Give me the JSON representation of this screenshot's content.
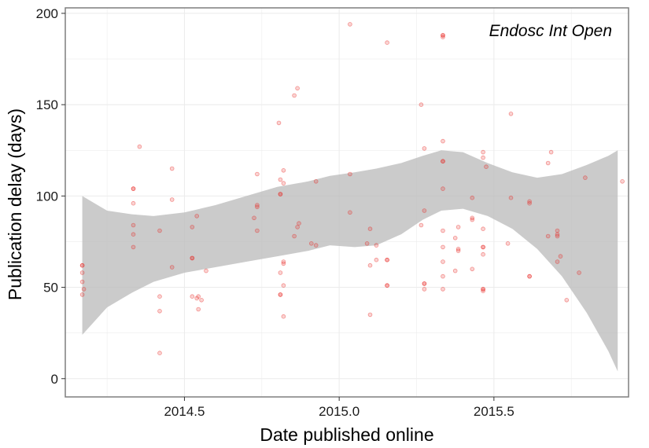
{
  "chart_data": {
    "type": "scatter",
    "annotation": "Endosc Int Open",
    "xlabel": "Date published online",
    "ylabel": "Publication delay (days)",
    "xlim": [
      2014.115,
      2015.935
    ],
    "ylim": [
      -10,
      203
    ],
    "x_ticks": [
      2014.5,
      2015.0,
      2015.5
    ],
    "x_tick_labels": [
      "2014.5",
      "2015.0",
      "2015.5"
    ],
    "y_ticks": [
      0,
      50,
      100,
      150,
      200
    ],
    "y_tick_labels": [
      "0",
      "50",
      "100",
      "150",
      "200"
    ],
    "grid": true,
    "colors": {
      "points": "#e8211d",
      "band": "#bdbdbd",
      "panel_border": "#7f7f7f",
      "grid": "#ececec"
    },
    "points": [
      [
        2014.17,
        62
      ],
      [
        2014.17,
        62
      ],
      [
        2014.17,
        58
      ],
      [
        2014.17,
        53
      ],
      [
        2014.17,
        46
      ],
      [
        2014.175,
        49
      ],
      [
        2014.335,
        104
      ],
      [
        2014.335,
        104
      ],
      [
        2014.335,
        96
      ],
      [
        2014.335,
        84
      ],
      [
        2014.335,
        79
      ],
      [
        2014.335,
        72
      ],
      [
        2014.355,
        127
      ],
      [
        2014.42,
        81
      ],
      [
        2014.42,
        45
      ],
      [
        2014.42,
        37
      ],
      [
        2014.42,
        14
      ],
      [
        2014.46,
        115
      ],
      [
        2014.46,
        98
      ],
      [
        2014.46,
        61
      ],
      [
        2014.525,
        83
      ],
      [
        2014.525,
        66
      ],
      [
        2014.525,
        66
      ],
      [
        2014.525,
        45
      ],
      [
        2014.54,
        89
      ],
      [
        2014.54,
        44
      ],
      [
        2014.545,
        45
      ],
      [
        2014.545,
        38
      ],
      [
        2014.555,
        43
      ],
      [
        2014.57,
        59
      ],
      [
        2014.725,
        88
      ],
      [
        2014.735,
        112
      ],
      [
        2014.735,
        95
      ],
      [
        2014.735,
        94
      ],
      [
        2014.735,
        81
      ],
      [
        2014.805,
        140
      ],
      [
        2014.81,
        109
      ],
      [
        2014.81,
        101
      ],
      [
        2014.81,
        101
      ],
      [
        2014.81,
        58
      ],
      [
        2014.81,
        46
      ],
      [
        2014.81,
        46
      ],
      [
        2014.82,
        114
      ],
      [
        2014.82,
        107
      ],
      [
        2014.82,
        64
      ],
      [
        2014.82,
        63
      ],
      [
        2014.82,
        51
      ],
      [
        2014.82,
        34
      ],
      [
        2014.855,
        155
      ],
      [
        2014.855,
        78
      ],
      [
        2014.865,
        159
      ],
      [
        2014.865,
        83
      ],
      [
        2014.87,
        85
      ],
      [
        2014.91,
        74
      ],
      [
        2014.925,
        108
      ],
      [
        2014.925,
        73
      ],
      [
        2015.035,
        194
      ],
      [
        2015.035,
        112
      ],
      [
        2015.035,
        91
      ],
      [
        2015.09,
        74
      ],
      [
        2015.1,
        82
      ],
      [
        2015.1,
        62
      ],
      [
        2015.1,
        35
      ],
      [
        2015.12,
        73
      ],
      [
        2015.12,
        65
      ],
      [
        2015.155,
        184
      ],
      [
        2015.155,
        65
      ],
      [
        2015.155,
        65
      ],
      [
        2015.155,
        51
      ],
      [
        2015.155,
        51
      ],
      [
        2015.265,
        150
      ],
      [
        2015.265,
        84
      ],
      [
        2015.275,
        126
      ],
      [
        2015.275,
        92
      ],
      [
        2015.275,
        52
      ],
      [
        2015.275,
        52
      ],
      [
        2015.275,
        49
      ],
      [
        2015.335,
        188
      ],
      [
        2015.335,
        188
      ],
      [
        2015.335,
        187
      ],
      [
        2015.335,
        130
      ],
      [
        2015.335,
        119
      ],
      [
        2015.335,
        119
      ],
      [
        2015.335,
        104
      ],
      [
        2015.335,
        81
      ],
      [
        2015.335,
        72
      ],
      [
        2015.335,
        64
      ],
      [
        2015.335,
        56
      ],
      [
        2015.335,
        49
      ],
      [
        2015.375,
        77
      ],
      [
        2015.375,
        59
      ],
      [
        2015.385,
        83
      ],
      [
        2015.385,
        71
      ],
      [
        2015.385,
        70
      ],
      [
        2015.43,
        99
      ],
      [
        2015.43,
        87
      ],
      [
        2015.43,
        88
      ],
      [
        2015.43,
        60
      ],
      [
        2015.465,
        124
      ],
      [
        2015.465,
        121
      ],
      [
        2015.465,
        82
      ],
      [
        2015.465,
        72
      ],
      [
        2015.465,
        72
      ],
      [
        2015.465,
        68
      ],
      [
        2015.465,
        49
      ],
      [
        2015.465,
        49
      ],
      [
        2015.465,
        48
      ],
      [
        2015.475,
        116
      ],
      [
        2015.545,
        74
      ],
      [
        2015.555,
        145
      ],
      [
        2015.555,
        99
      ],
      [
        2015.615,
        97
      ],
      [
        2015.615,
        96
      ],
      [
        2015.615,
        56
      ],
      [
        2015.615,
        56
      ],
      [
        2015.675,
        118
      ],
      [
        2015.675,
        78
      ],
      [
        2015.685,
        124
      ],
      [
        2015.705,
        81
      ],
      [
        2015.705,
        79
      ],
      [
        2015.705,
        78
      ],
      [
        2015.705,
        64
      ],
      [
        2015.715,
        67
      ],
      [
        2015.735,
        43
      ],
      [
        2015.775,
        58
      ],
      [
        2015.795,
        110
      ],
      [
        2015.915,
        108
      ]
    ],
    "smooth_band": {
      "x": [
        2014.17,
        2014.25,
        2014.33,
        2014.4,
        2014.5,
        2014.6,
        2014.7,
        2014.8,
        2014.9,
        2014.97,
        2015.05,
        2015.12,
        2015.2,
        2015.27,
        2015.33,
        2015.4,
        2015.48,
        2015.56,
        2015.64,
        2015.72,
        2015.8,
        2015.87,
        2015.9
      ],
      "upper": [
        100,
        92,
        90,
        89,
        91,
        95,
        100,
        105,
        108,
        111,
        113,
        115,
        118,
        122,
        125,
        124,
        118,
        113,
        110,
        112,
        117,
        122,
        125
      ],
      "lower": [
        24,
        39,
        47,
        53,
        58,
        61,
        64,
        67,
        70,
        73,
        72,
        73,
        79,
        87,
        92,
        93,
        89,
        82,
        71,
        56,
        36,
        15,
        4
      ]
    }
  }
}
